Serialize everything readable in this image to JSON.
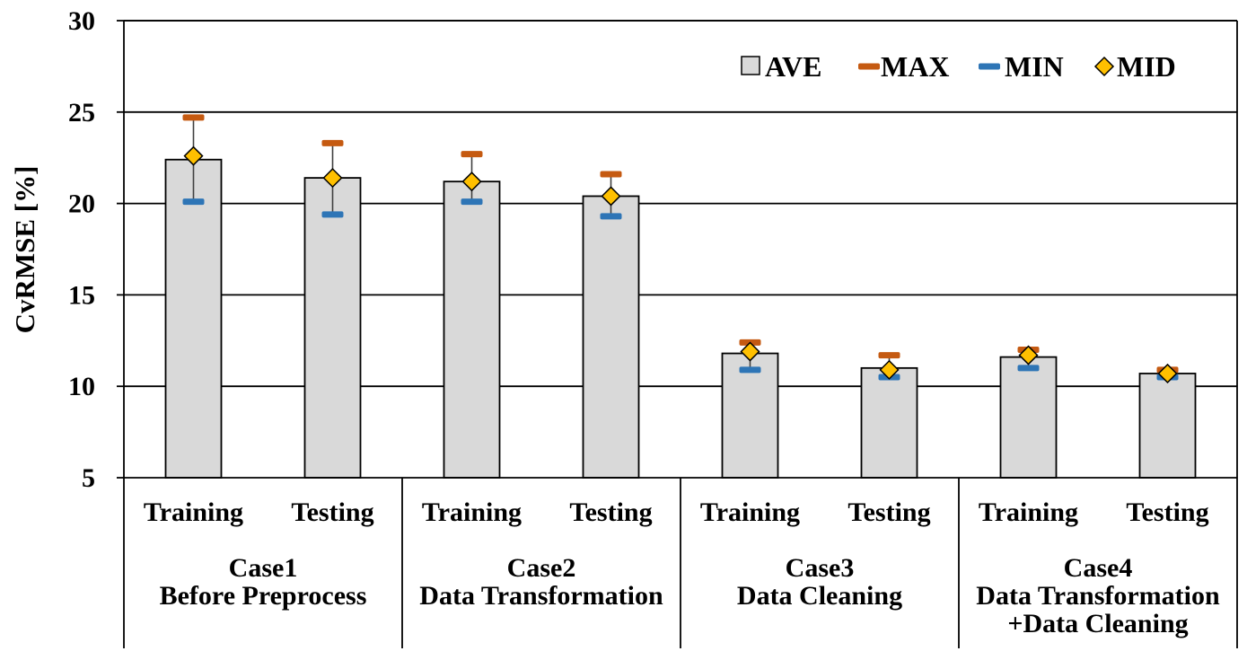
{
  "chart_data": {
    "type": "bar",
    "title": "",
    "xlabel": "",
    "ylabel": "CvRMSE [%]",
    "ylim": [
      5,
      30
    ],
    "yticks": [
      5,
      10,
      15,
      20,
      25,
      30
    ],
    "grid": true,
    "legend_position": "top-right",
    "legend": [
      "AVE",
      "MAX",
      "MIN",
      "MID"
    ],
    "colors": {
      "bar_fill": "#d9d9d9",
      "bar_stroke": "#000000",
      "max": "#c55a11",
      "min": "#2e75b6",
      "mid_fill": "#ffc000",
      "mid_stroke": "#000000",
      "gridline": "#000000"
    },
    "groups": [
      {
        "name": "Case1",
        "subtitle": [
          "Before Preprocess"
        ]
      },
      {
        "name": "Case2",
        "subtitle": [
          "Data Transformation"
        ]
      },
      {
        "name": "Case3",
        "subtitle": [
          "Data Cleaning"
        ]
      },
      {
        "name": "Case4",
        "subtitle": [
          "Data Transformation",
          "+Data Cleaning"
        ]
      }
    ],
    "categories": [
      "Training",
      "Testing",
      "Training",
      "Testing",
      "Training",
      "Testing",
      "Training",
      "Testing"
    ],
    "series": [
      {
        "name": "AVE",
        "values": [
          22.4,
          21.4,
          21.2,
          20.4,
          11.8,
          11.0,
          11.6,
          10.7
        ]
      },
      {
        "name": "MAX",
        "values": [
          24.7,
          23.3,
          22.7,
          21.6,
          12.4,
          11.7,
          12.0,
          10.9
        ]
      },
      {
        "name": "MIN",
        "values": [
          20.1,
          19.4,
          20.1,
          19.3,
          10.9,
          10.5,
          11.0,
          10.5
        ]
      },
      {
        "name": "MID",
        "values": [
          22.6,
          21.4,
          21.2,
          20.4,
          11.9,
          10.9,
          11.7,
          10.7
        ]
      }
    ]
  }
}
